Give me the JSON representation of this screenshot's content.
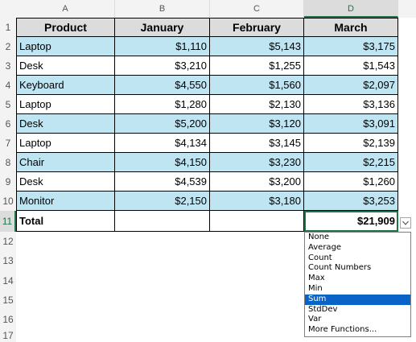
{
  "columns": [
    "A",
    "B",
    "C",
    "D"
  ],
  "selected_column": "D",
  "rows": [
    "1",
    "2",
    "3",
    "4",
    "5",
    "6",
    "7",
    "8",
    "9",
    "10",
    "11",
    "12",
    "13",
    "14",
    "15",
    "16",
    "17"
  ],
  "selected_row": "11",
  "table": {
    "headers": [
      "Product",
      "January",
      "February",
      "March"
    ],
    "data": [
      [
        "Laptop",
        "$1,110",
        "$5,143",
        "$3,175"
      ],
      [
        "Desk",
        "$3,210",
        "$1,255",
        "$1,543"
      ],
      [
        "Keyboard",
        "$4,550",
        "$1,560",
        "$2,097"
      ],
      [
        "Laptop",
        "$1,280",
        "$2,130",
        "$3,136"
      ],
      [
        "Desk",
        "$5,200",
        "$3,120",
        "$3,091"
      ],
      [
        "Laptop",
        "$4,134",
        "$3,145",
        "$2,139"
      ],
      [
        "Chair",
        "$4,150",
        "$3,230",
        "$2,215"
      ],
      [
        "Desk",
        "$4,539",
        "$3,200",
        "$1,260"
      ],
      [
        "Monitor",
        "$2,150",
        "$3,180",
        "$3,253"
      ]
    ],
    "total": [
      "Total",
      "",
      "",
      "$21,909"
    ]
  },
  "dropdown": {
    "icon": "chevron-down-icon",
    "options": [
      "None",
      "Average",
      "Count",
      "Count Numbers",
      "Max",
      "Min",
      "Sum",
      "StdDev",
      "Var",
      "More Functions..."
    ],
    "selected": "Sum"
  },
  "colors": {
    "band": "#bfe4f2",
    "header_fill": "#dcdcdc",
    "accent": "#217346",
    "menu_highlight": "#0a64c8"
  }
}
